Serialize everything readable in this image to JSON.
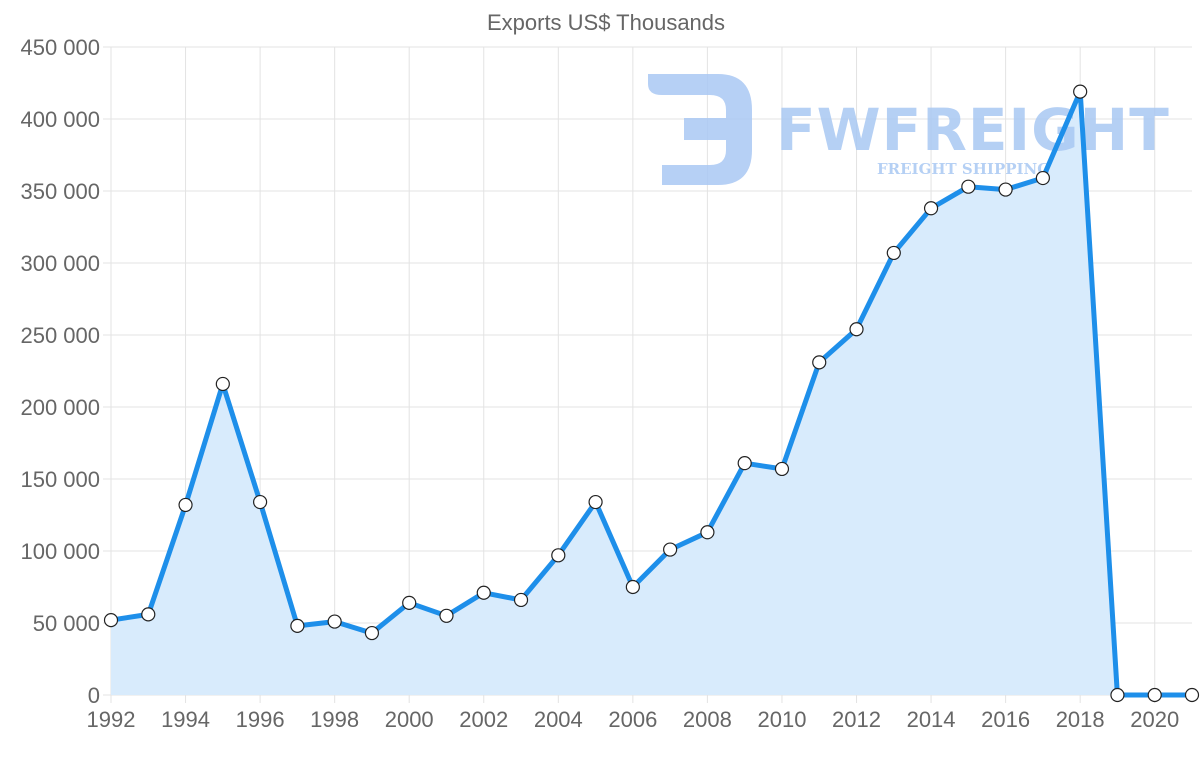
{
  "chart_data": {
    "type": "area",
    "title": "Exports US$ Thousands",
    "xlabel": "",
    "ylabel": "",
    "x": [
      1992,
      1993,
      1994,
      1995,
      1996,
      1997,
      1998,
      1999,
      2000,
      2001,
      2002,
      2003,
      2004,
      2005,
      2006,
      2007,
      2008,
      2009,
      2010,
      2011,
      2012,
      2013,
      2014,
      2015,
      2016,
      2017,
      2018,
      2019,
      2020,
      2021
    ],
    "series": [
      {
        "name": "Exports US$ Thousands",
        "values": [
          52000,
          56000,
          132000,
          216000,
          134000,
          48000,
          51000,
          43000,
          64000,
          55000,
          71000,
          66000,
          97000,
          134000,
          75000,
          101000,
          113000,
          161000,
          157000,
          231000,
          254000,
          307000,
          338000,
          353000,
          351000,
          359000,
          419000,
          0,
          0,
          0
        ]
      }
    ],
    "xlim": [
      1992,
      2021
    ],
    "ylim": [
      0,
      450000
    ],
    "x_ticks": [
      1992,
      1994,
      1996,
      1998,
      2000,
      2002,
      2004,
      2006,
      2008,
      2010,
      2012,
      2014,
      2016,
      2018,
      2020
    ],
    "y_ticks": [
      0,
      50000,
      100000,
      150000,
      200000,
      250000,
      300000,
      350000,
      400000,
      450000
    ],
    "y_tick_labels": [
      "0",
      "50 000",
      "100 000",
      "150 000",
      "200 000",
      "250 000",
      "300 000",
      "350 000",
      "400 000",
      "450 000"
    ],
    "grid": true,
    "legend": "none"
  },
  "colors": {
    "line": "#1e8fea",
    "fill": "#d8ebfc",
    "watermark": "#a9c8f3"
  },
  "watermark": {
    "brand": "FWFREIGHT",
    "tagline": "FREIGHT SHIPPING"
  }
}
